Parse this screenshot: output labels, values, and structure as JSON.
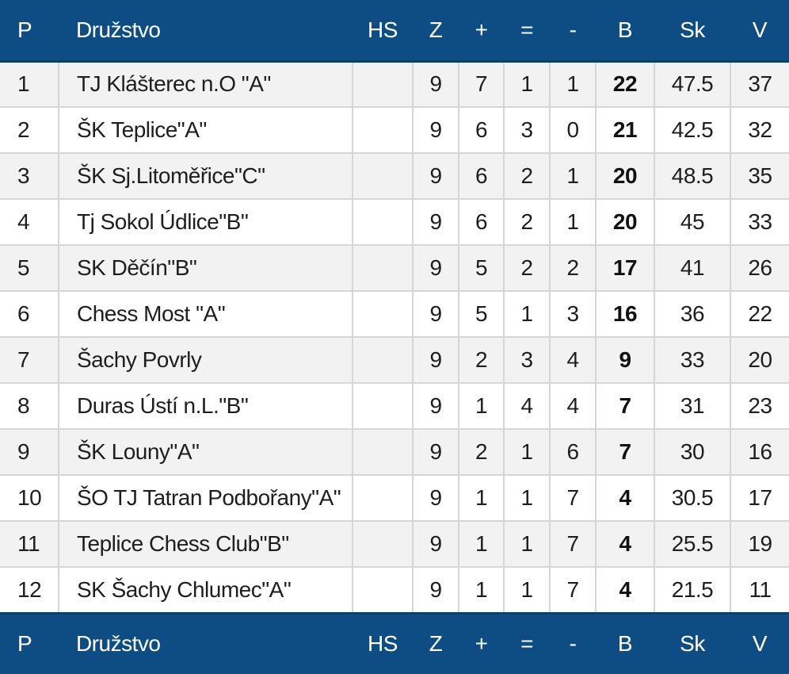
{
  "header": {
    "p": "P",
    "team": "Družstvo",
    "hs": "HS",
    "z": "Z",
    "w": "+",
    "d": "=",
    "l": "-",
    "b": "B",
    "sk": "Sk",
    "v": "V"
  },
  "rows": [
    {
      "p": "1",
      "team": "TJ Klášterec n.O \"A\"",
      "hs": "",
      "z": "9",
      "w": "7",
      "d": "1",
      "l": "1",
      "b": "22",
      "sk": "47.5",
      "v": "37"
    },
    {
      "p": "2",
      "team": "ŠK Teplice\"A\"",
      "hs": "",
      "z": "9",
      "w": "6",
      "d": "3",
      "l": "0",
      "b": "21",
      "sk": "42.5",
      "v": "32"
    },
    {
      "p": "3",
      "team": "ŠK Sj.Litoměřice\"C\"",
      "hs": "",
      "z": "9",
      "w": "6",
      "d": "2",
      "l": "1",
      "b": "20",
      "sk": "48.5",
      "v": "35"
    },
    {
      "p": "4",
      "team": "Tj Sokol Údlice\"B\"",
      "hs": "",
      "z": "9",
      "w": "6",
      "d": "2",
      "l": "1",
      "b": "20",
      "sk": "45",
      "v": "33"
    },
    {
      "p": "5",
      "team": "SK Děčín\"B\"",
      "hs": "",
      "z": "9",
      "w": "5",
      "d": "2",
      "l": "2",
      "b": "17",
      "sk": "41",
      "v": "26"
    },
    {
      "p": "6",
      "team": "Chess Most \"A\"",
      "hs": "",
      "z": "9",
      "w": "5",
      "d": "1",
      "l": "3",
      "b": "16",
      "sk": "36",
      "v": "22"
    },
    {
      "p": "7",
      "team": "Šachy Povrly",
      "hs": "",
      "z": "9",
      "w": "2",
      "d": "3",
      "l": "4",
      "b": "9",
      "sk": "33",
      "v": "20"
    },
    {
      "p": "8",
      "team": "Duras Ústí n.L.\"B\"",
      "hs": "",
      "z": "9",
      "w": "1",
      "d": "4",
      "l": "4",
      "b": "7",
      "sk": "31",
      "v": "23"
    },
    {
      "p": "9",
      "team": "ŠK Louny\"A\"",
      "hs": "",
      "z": "9",
      "w": "2",
      "d": "1",
      "l": "6",
      "b": "7",
      "sk": "30",
      "v": "16"
    },
    {
      "p": "10",
      "team": "ŠO TJ Tatran Podbořany\"A\"",
      "hs": "",
      "z": "9",
      "w": "1",
      "d": "1",
      "l": "7",
      "b": "4",
      "sk": "30.5",
      "v": "17"
    },
    {
      "p": "11",
      "team": "Teplice Chess Club\"B\"",
      "hs": "",
      "z": "9",
      "w": "1",
      "d": "1",
      "l": "7",
      "b": "4",
      "sk": "25.5",
      "v": "19"
    },
    {
      "p": "12",
      "team": "SK Šachy Chlumec\"A\"",
      "hs": "",
      "z": "9",
      "w": "1",
      "d": "1",
      "l": "7",
      "b": "4",
      "sk": "21.5",
      "v": "11"
    }
  ]
}
